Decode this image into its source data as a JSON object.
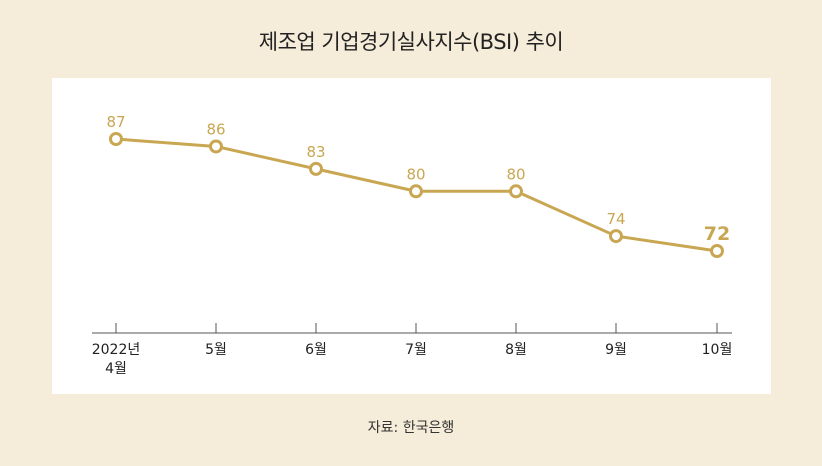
{
  "title": "제조업 기업경기실사지수(BSI) 추이",
  "source": "자료: 한국은행",
  "colors": {
    "line": "#c9a752",
    "background": "#f5edda",
    "panel": "#ffffff",
    "axis": "#555555"
  },
  "chart_data": {
    "type": "line",
    "title": "제조업 기업경기실사지수(BSI) 추이",
    "categories": [
      [
        "2022년",
        "4월"
      ],
      [
        "5월"
      ],
      [
        "6월"
      ],
      [
        "7월"
      ],
      [
        "8월"
      ],
      [
        "9월"
      ],
      [
        "10월"
      ]
    ],
    "values": [
      87,
      86,
      83,
      80,
      80,
      74,
      72
    ],
    "value_labels": [
      "87",
      "86",
      "83",
      "80",
      "80",
      "74",
      "72"
    ],
    "highlight_last": true,
    "ylim": [
      60,
      90
    ],
    "grid": false,
    "xlabel": "",
    "ylabel": ""
  }
}
